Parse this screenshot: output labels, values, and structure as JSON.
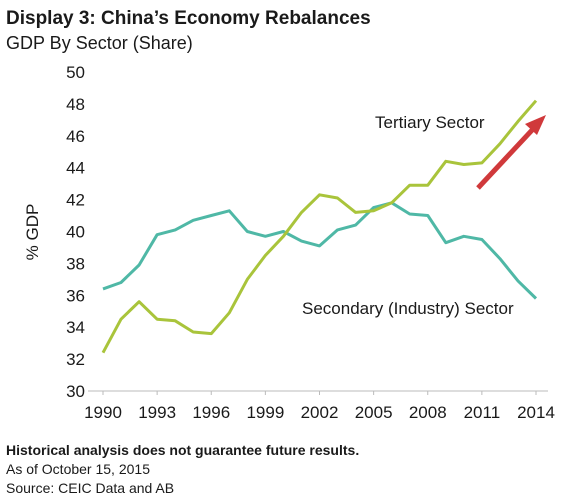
{
  "chart_data": {
    "type": "line",
    "title": "Display 3: China’s Economy Rebalances",
    "subtitle": "GDP By Sector (Share)",
    "y_label": "% GDP",
    "x": [
      1990,
      1991,
      1992,
      1993,
      1994,
      1995,
      1996,
      1997,
      1998,
      1999,
      2000,
      2001,
      2002,
      2003,
      2004,
      2005,
      2006,
      2007,
      2008,
      2009,
      2010,
      2011,
      2012,
      2013,
      2014
    ],
    "series": [
      {
        "name": "Secondary (Industry) Sector",
        "color": "#4fb8a6",
        "values": [
          36.4,
          36.8,
          37.9,
          39.8,
          40.1,
          40.7,
          41.0,
          41.3,
          40.0,
          39.7,
          40.0,
          39.4,
          39.1,
          40.1,
          40.4,
          41.5,
          41.8,
          41.1,
          41.0,
          39.3,
          39.7,
          39.5,
          38.3,
          36.9,
          35.8
        ]
      },
      {
        "name": "Tertiary Sector",
        "color": "#a9c43b",
        "values": [
          32.4,
          34.5,
          35.6,
          34.5,
          34.4,
          33.7,
          33.6,
          34.9,
          37.0,
          38.5,
          39.7,
          41.2,
          42.3,
          42.1,
          41.2,
          41.3,
          41.8,
          42.9,
          42.9,
          44.4,
          44.2,
          44.3,
          45.5,
          46.9,
          48.2
        ]
      }
    ],
    "xlim": [
      1990,
      2014
    ],
    "xticks": [
      1990,
      1993,
      1996,
      1999,
      2002,
      2005,
      2008,
      2011,
      2014
    ],
    "ylim": [
      30,
      50
    ],
    "yticks": [
      30,
      32,
      34,
      36,
      38,
      40,
      42,
      44,
      46,
      48,
      50
    ],
    "grid": false,
    "notes": [
      "Historical analysis does not guarantee future results.",
      "As of October 15, 2015",
      "Source: CEIC Data and AB"
    ]
  }
}
